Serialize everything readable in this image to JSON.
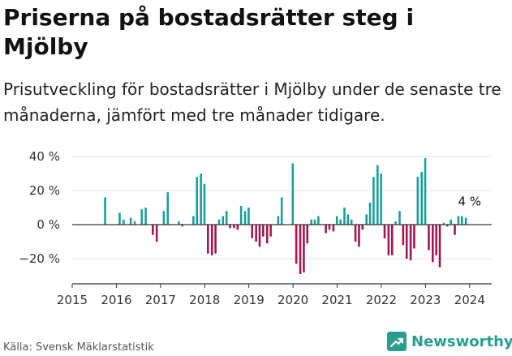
{
  "header": {
    "title": "Priserna på bostadsrätter steg i Mjölby",
    "subtitle": "Prisutveckling för bostadsrätter i Mjölby under de senaste tre månaderna, jämfört med tre månader tidigare."
  },
  "footer": {
    "source": "Källa: Svensk Mäklarstatistik",
    "brand": "Newsworthy",
    "brand_icon": "newsworthy-logo-icon"
  },
  "colors": {
    "positive": "#1a9e94",
    "negative": "#a3134f",
    "axis": "#333333",
    "grid": "#e6e6e6",
    "brand": "#2a9d8f"
  },
  "chart_data": {
    "type": "bar",
    "title": "Priserna på bostadsrätter steg i Mjölby",
    "xlabel": "",
    "ylabel": "",
    "ylim": [
      -33,
      43
    ],
    "yticks": [
      40,
      20,
      0,
      -20
    ],
    "ytick_labels": [
      "40 %",
      "20 %",
      "0 %",
      "−20 %"
    ],
    "xticks": [
      2015,
      2016,
      2017,
      2018,
      2019,
      2020,
      2021,
      2022,
      2023,
      2024
    ],
    "xtick_labels": [
      "2015",
      "2016",
      "2017",
      "2018",
      "2019",
      "2020",
      "2021",
      "2022",
      "2023",
      "2024"
    ],
    "xlim": [
      2015,
      2024.5
    ],
    "bar_width_years": 0.058,
    "annotation": {
      "text": "4 %",
      "x": 2024.0,
      "y": 4
    },
    "points": [
      {
        "x": 2015.75,
        "y": 16
      },
      {
        "x": 2016.08,
        "y": 7
      },
      {
        "x": 2016.17,
        "y": 3
      },
      {
        "x": 2016.33,
        "y": 4
      },
      {
        "x": 2016.42,
        "y": 2
      },
      {
        "x": 2016.58,
        "y": 9
      },
      {
        "x": 2016.67,
        "y": 10
      },
      {
        "x": 2016.83,
        "y": -6
      },
      {
        "x": 2016.92,
        "y": -10
      },
      {
        "x": 2017.08,
        "y": 8
      },
      {
        "x": 2017.17,
        "y": 19
      },
      {
        "x": 2017.42,
        "y": 2
      },
      {
        "x": 2017.5,
        "y": -1
      },
      {
        "x": 2017.75,
        "y": 5
      },
      {
        "x": 2017.83,
        "y": 28
      },
      {
        "x": 2017.92,
        "y": 30
      },
      {
        "x": 2018.0,
        "y": 24
      },
      {
        "x": 2018.08,
        "y": -17
      },
      {
        "x": 2018.17,
        "y": -18
      },
      {
        "x": 2018.25,
        "y": -17
      },
      {
        "x": 2018.33,
        "y": 3
      },
      {
        "x": 2018.42,
        "y": 5
      },
      {
        "x": 2018.5,
        "y": 8
      },
      {
        "x": 2018.58,
        "y": -2
      },
      {
        "x": 2018.67,
        "y": -2
      },
      {
        "x": 2018.75,
        "y": -3
      },
      {
        "x": 2018.83,
        "y": 11
      },
      {
        "x": 2018.92,
        "y": 8
      },
      {
        "x": 2019.0,
        "y": 10
      },
      {
        "x": 2019.08,
        "y": -8
      },
      {
        "x": 2019.17,
        "y": -10
      },
      {
        "x": 2019.25,
        "y": -13
      },
      {
        "x": 2019.33,
        "y": -7
      },
      {
        "x": 2019.42,
        "y": -11
      },
      {
        "x": 2019.5,
        "y": -7
      },
      {
        "x": 2019.67,
        "y": 5
      },
      {
        "x": 2019.75,
        "y": 16
      },
      {
        "x": 2020.0,
        "y": 36
      },
      {
        "x": 2020.08,
        "y": -23
      },
      {
        "x": 2020.17,
        "y": -29
      },
      {
        "x": 2020.25,
        "y": -28
      },
      {
        "x": 2020.33,
        "y": -11
      },
      {
        "x": 2020.42,
        "y": 3
      },
      {
        "x": 2020.5,
        "y": 3
      },
      {
        "x": 2020.58,
        "y": 5
      },
      {
        "x": 2020.75,
        "y": -5
      },
      {
        "x": 2020.83,
        "y": -3
      },
      {
        "x": 2020.92,
        "y": -4
      },
      {
        "x": 2021.0,
        "y": 5
      },
      {
        "x": 2021.08,
        "y": 3
      },
      {
        "x": 2021.17,
        "y": 10
      },
      {
        "x": 2021.25,
        "y": 6
      },
      {
        "x": 2021.33,
        "y": 3
      },
      {
        "x": 2021.42,
        "y": -10
      },
      {
        "x": 2021.5,
        "y": -13
      },
      {
        "x": 2021.58,
        "y": -3
      },
      {
        "x": 2021.67,
        "y": 6
      },
      {
        "x": 2021.75,
        "y": 13
      },
      {
        "x": 2021.83,
        "y": 28
      },
      {
        "x": 2021.92,
        "y": 35
      },
      {
        "x": 2022.0,
        "y": 30
      },
      {
        "x": 2022.08,
        "y": -8
      },
      {
        "x": 2022.17,
        "y": -18
      },
      {
        "x": 2022.25,
        "y": -18
      },
      {
        "x": 2022.33,
        "y": 2
      },
      {
        "x": 2022.42,
        "y": 8
      },
      {
        "x": 2022.5,
        "y": -12
      },
      {
        "x": 2022.58,
        "y": -20
      },
      {
        "x": 2022.67,
        "y": -21
      },
      {
        "x": 2022.75,
        "y": -14
      },
      {
        "x": 2022.83,
        "y": 28
      },
      {
        "x": 2022.92,
        "y": 31
      },
      {
        "x": 2023.0,
        "y": 39
      },
      {
        "x": 2023.08,
        "y": -15
      },
      {
        "x": 2023.17,
        "y": -22
      },
      {
        "x": 2023.25,
        "y": -18
      },
      {
        "x": 2023.33,
        "y": -25
      },
      {
        "x": 2023.42,
        "y": 1
      },
      {
        "x": 2023.5,
        "y": -1
      },
      {
        "x": 2023.58,
        "y": 3
      },
      {
        "x": 2023.67,
        "y": -6
      },
      {
        "x": 2023.75,
        "y": 5
      },
      {
        "x": 2023.83,
        "y": 5
      },
      {
        "x": 2023.92,
        "y": 4
      }
    ]
  }
}
